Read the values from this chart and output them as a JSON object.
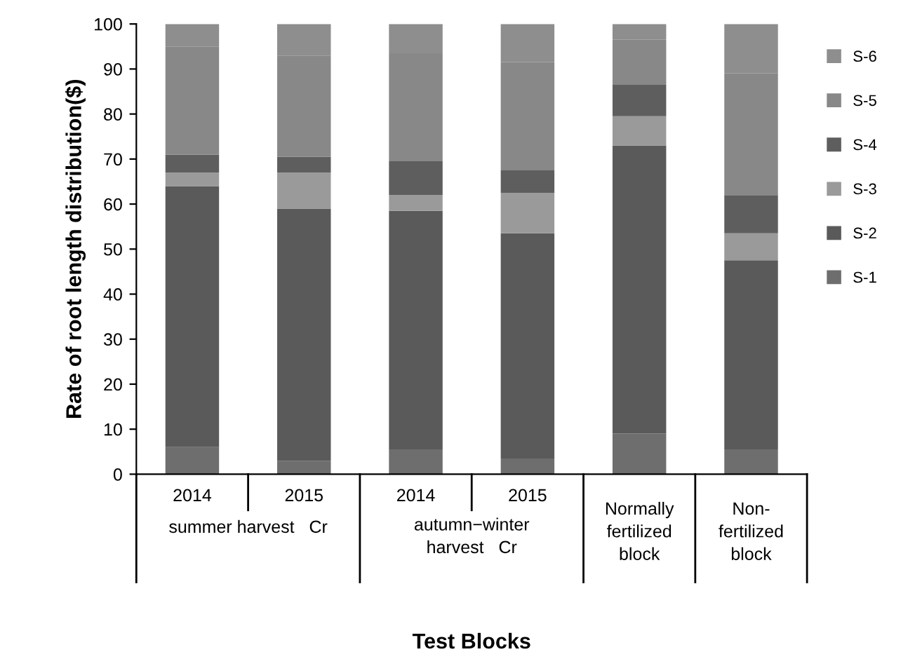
{
  "chart_data": {
    "type": "bar",
    "stacked": true,
    "xlabel": "Test Blocks",
    "ylabel": "Rate of root length distribution($)",
    "categories": [
      "2014",
      "2015",
      "2014",
      "2015",
      "Normally fertilized block",
      "Non-fertilized block"
    ],
    "annotations": [
      "summer harvest   Cr",
      "autumn−winter harvest   Cr"
    ],
    "series": [
      {
        "name": "S-1",
        "color": "#6e6e6e",
        "values": [
          6,
          3,
          5.5,
          3.5,
          9,
          5.5
        ]
      },
      {
        "name": "S-2",
        "color": "#5a5a5a",
        "values": [
          58,
          56,
          53,
          50,
          64,
          42
        ]
      },
      {
        "name": "S-3",
        "color": "#9a9a9a",
        "values": [
          3,
          8,
          3.5,
          9,
          6.5,
          6
        ]
      },
      {
        "name": "S-4",
        "color": "#5e5e5e",
        "values": [
          4,
          3.5,
          7.5,
          5,
          7,
          8.5
        ]
      },
      {
        "name": "S-5",
        "color": "#888888",
        "values": [
          24,
          22.5,
          24,
          24,
          10,
          27
        ]
      },
      {
        "name": "S-6",
        "color": "#8e8e8e",
        "values": [
          5,
          7,
          6.5,
          8.5,
          3.5,
          11
        ]
      }
    ],
    "ylim": [
      0,
      100
    ],
    "yticks": [
      0,
      10,
      20,
      30,
      40,
      50,
      60,
      70,
      80,
      90,
      100
    ],
    "grid": false,
    "legend": "right"
  }
}
